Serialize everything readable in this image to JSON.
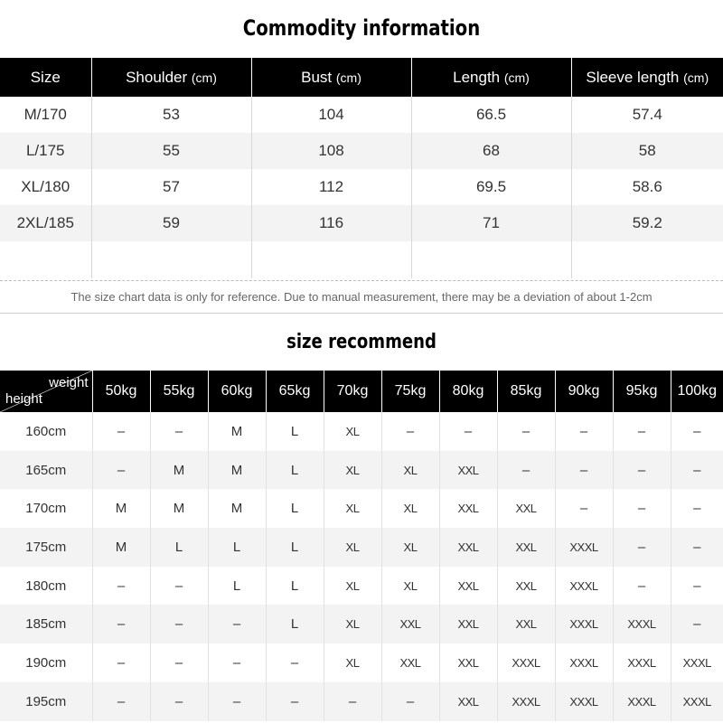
{
  "title": "Commodity information",
  "size_chart": {
    "headers": [
      {
        "label": "Size",
        "unit": ""
      },
      {
        "label": "Shoulder",
        "unit": "(cm)"
      },
      {
        "label": "Bust",
        "unit": "(cm)"
      },
      {
        "label": "Length",
        "unit": "(cm)"
      },
      {
        "label": "Sleeve length",
        "unit": "(cm)"
      }
    ],
    "rows": [
      [
        "M/170",
        "53",
        "104",
        "66.5",
        "57.4"
      ],
      [
        "L/175",
        "55",
        "108",
        "68",
        "58"
      ],
      [
        "XL/180",
        "57",
        "112",
        "69.5",
        "58.6"
      ],
      [
        "2XL/185",
        "59",
        "116",
        "71",
        "59.2"
      ]
    ]
  },
  "note": "The size chart data is only for reference. Due to manual measurement, there may be a deviation of about 1-2cm",
  "recommend": {
    "title": "size recommend",
    "corner_weight": "weight",
    "corner_height": "height",
    "weights": [
      "50kg",
      "55kg",
      "60kg",
      "65kg",
      "70kg",
      "75kg",
      "80kg",
      "85kg",
      "90kg",
      "95kg",
      "100kg"
    ],
    "rows": [
      {
        "height": "160cm",
        "cells": [
          "–",
          "–",
          "M",
          "L",
          "XL",
          "–",
          "–",
          "–",
          "–",
          "–",
          "–"
        ]
      },
      {
        "height": "165cm",
        "cells": [
          "–",
          "M",
          "M",
          "L",
          "XL",
          "XL",
          "XXL",
          "–",
          "–",
          "–",
          "–"
        ]
      },
      {
        "height": "170cm",
        "cells": [
          "M",
          "M",
          "M",
          "L",
          "XL",
          "XL",
          "XXL",
          "XXL",
          "–",
          "–",
          "–"
        ]
      },
      {
        "height": "175cm",
        "cells": [
          "M",
          "L",
          "L",
          "L",
          "XL",
          "XL",
          "XXL",
          "XXL",
          "XXXL",
          "–",
          "–"
        ]
      },
      {
        "height": "180cm",
        "cells": [
          "–",
          "–",
          "L",
          "L",
          "XL",
          "XL",
          "XXL",
          "XXL",
          "XXXL",
          "–",
          "–"
        ]
      },
      {
        "height": "185cm",
        "cells": [
          "–",
          "–",
          "–",
          "L",
          "XL",
          "XXL",
          "XXL",
          "XXL",
          "XXXL",
          "XXXL",
          "–"
        ]
      },
      {
        "height": "190cm",
        "cells": [
          "–",
          "–",
          "–",
          "–",
          "XL",
          "XXL",
          "XXL",
          "XXXL",
          "XXXL",
          "XXXL",
          "XXXL"
        ]
      },
      {
        "height": "195cm",
        "cells": [
          "–",
          "–",
          "–",
          "–",
          "–",
          "–",
          "XXL",
          "XXXL",
          "XXXL",
          "XXXL",
          "XXXL"
        ]
      }
    ]
  }
}
